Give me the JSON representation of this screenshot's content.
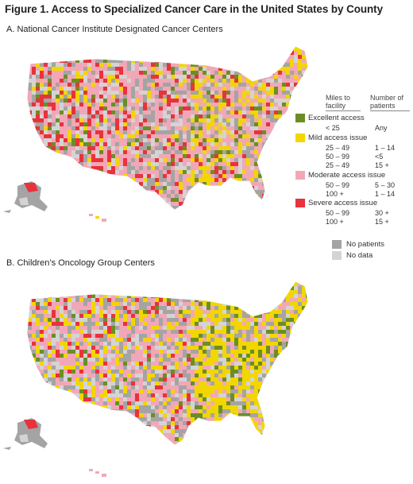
{
  "figure_title": "Figure 1.  Access to Specialized Cancer Care in the United States by County",
  "panels": [
    {
      "title": "A. National Cancer Institute  Designated Cancer Centers"
    },
    {
      "title": "B. Children’s Oncology Group Centers"
    }
  ],
  "legend": {
    "col_miles": "Miles to facility",
    "col_patients": "Number of patients",
    "groups": [
      {
        "label": "Excellent access",
        "color": "#6b8e23",
        "rows": [
          {
            "miles": "< 25",
            "patients": "Any"
          }
        ]
      },
      {
        "label": "Mild access issue",
        "color": "#f2d600",
        "rows": [
          {
            "miles": "25 – 49",
            "patients": "1 – 14"
          },
          {
            "miles": "50 – 99",
            "patients": "<5"
          },
          {
            "miles": "25 – 49",
            "patients": "15 +"
          }
        ]
      },
      {
        "label": "Moderate access issue",
        "color": "#f2a7b8",
        "rows": [
          {
            "miles": "50 – 99",
            "patients": "5 – 30"
          },
          {
            "miles": "100 +",
            "patients": "1 – 14"
          }
        ]
      },
      {
        "label": "Severe access issue",
        "color": "#e8323c",
        "rows": [
          {
            "miles": "50 – 99",
            "patients": "30 +"
          },
          {
            "miles": "100 +",
            "patients": "15 +"
          }
        ]
      }
    ],
    "no_patients": {
      "label": "No patients",
      "color": "#a4a4a4"
    },
    "no_data": {
      "label": "No data",
      "color": "#d4d4d4"
    }
  }
}
